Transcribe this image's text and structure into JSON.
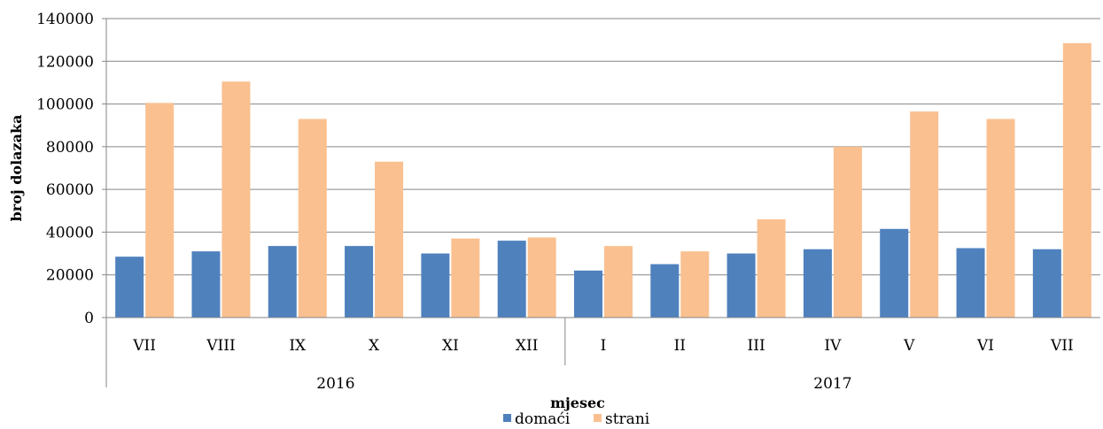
{
  "chart_data": {
    "type": "bar",
    "ylabel": "broj dolazaka",
    "xlabel": "mjesec",
    "ylim": [
      0,
      140000
    ],
    "yticks": [
      "0",
      "20000",
      "40000",
      "60000",
      "80000",
      "100000",
      "120000",
      "140000"
    ],
    "grid": true,
    "legend": "bottom",
    "groups": [
      {
        "label": "2016",
        "count": 6
      },
      {
        "label": "2017",
        "count": 7
      }
    ],
    "categories": [
      "VII",
      "VIII",
      "IX",
      "X",
      "XI",
      "XII",
      "I",
      "II",
      "III",
      "IV",
      "V",
      "VI",
      "VII"
    ],
    "series": [
      {
        "name": "domaći",
        "color": "#4f81bd",
        "values": [
          28500,
          31000,
          33500,
          33500,
          30000,
          36000,
          22000,
          25000,
          30000,
          32000,
          41500,
          32500,
          32000
        ]
      },
      {
        "name": "strani",
        "color": "#fac090",
        "values": [
          100500,
          110500,
          93000,
          73000,
          37000,
          37500,
          33500,
          31000,
          46000,
          80000,
          96500,
          93000,
          128500
        ]
      }
    ]
  }
}
